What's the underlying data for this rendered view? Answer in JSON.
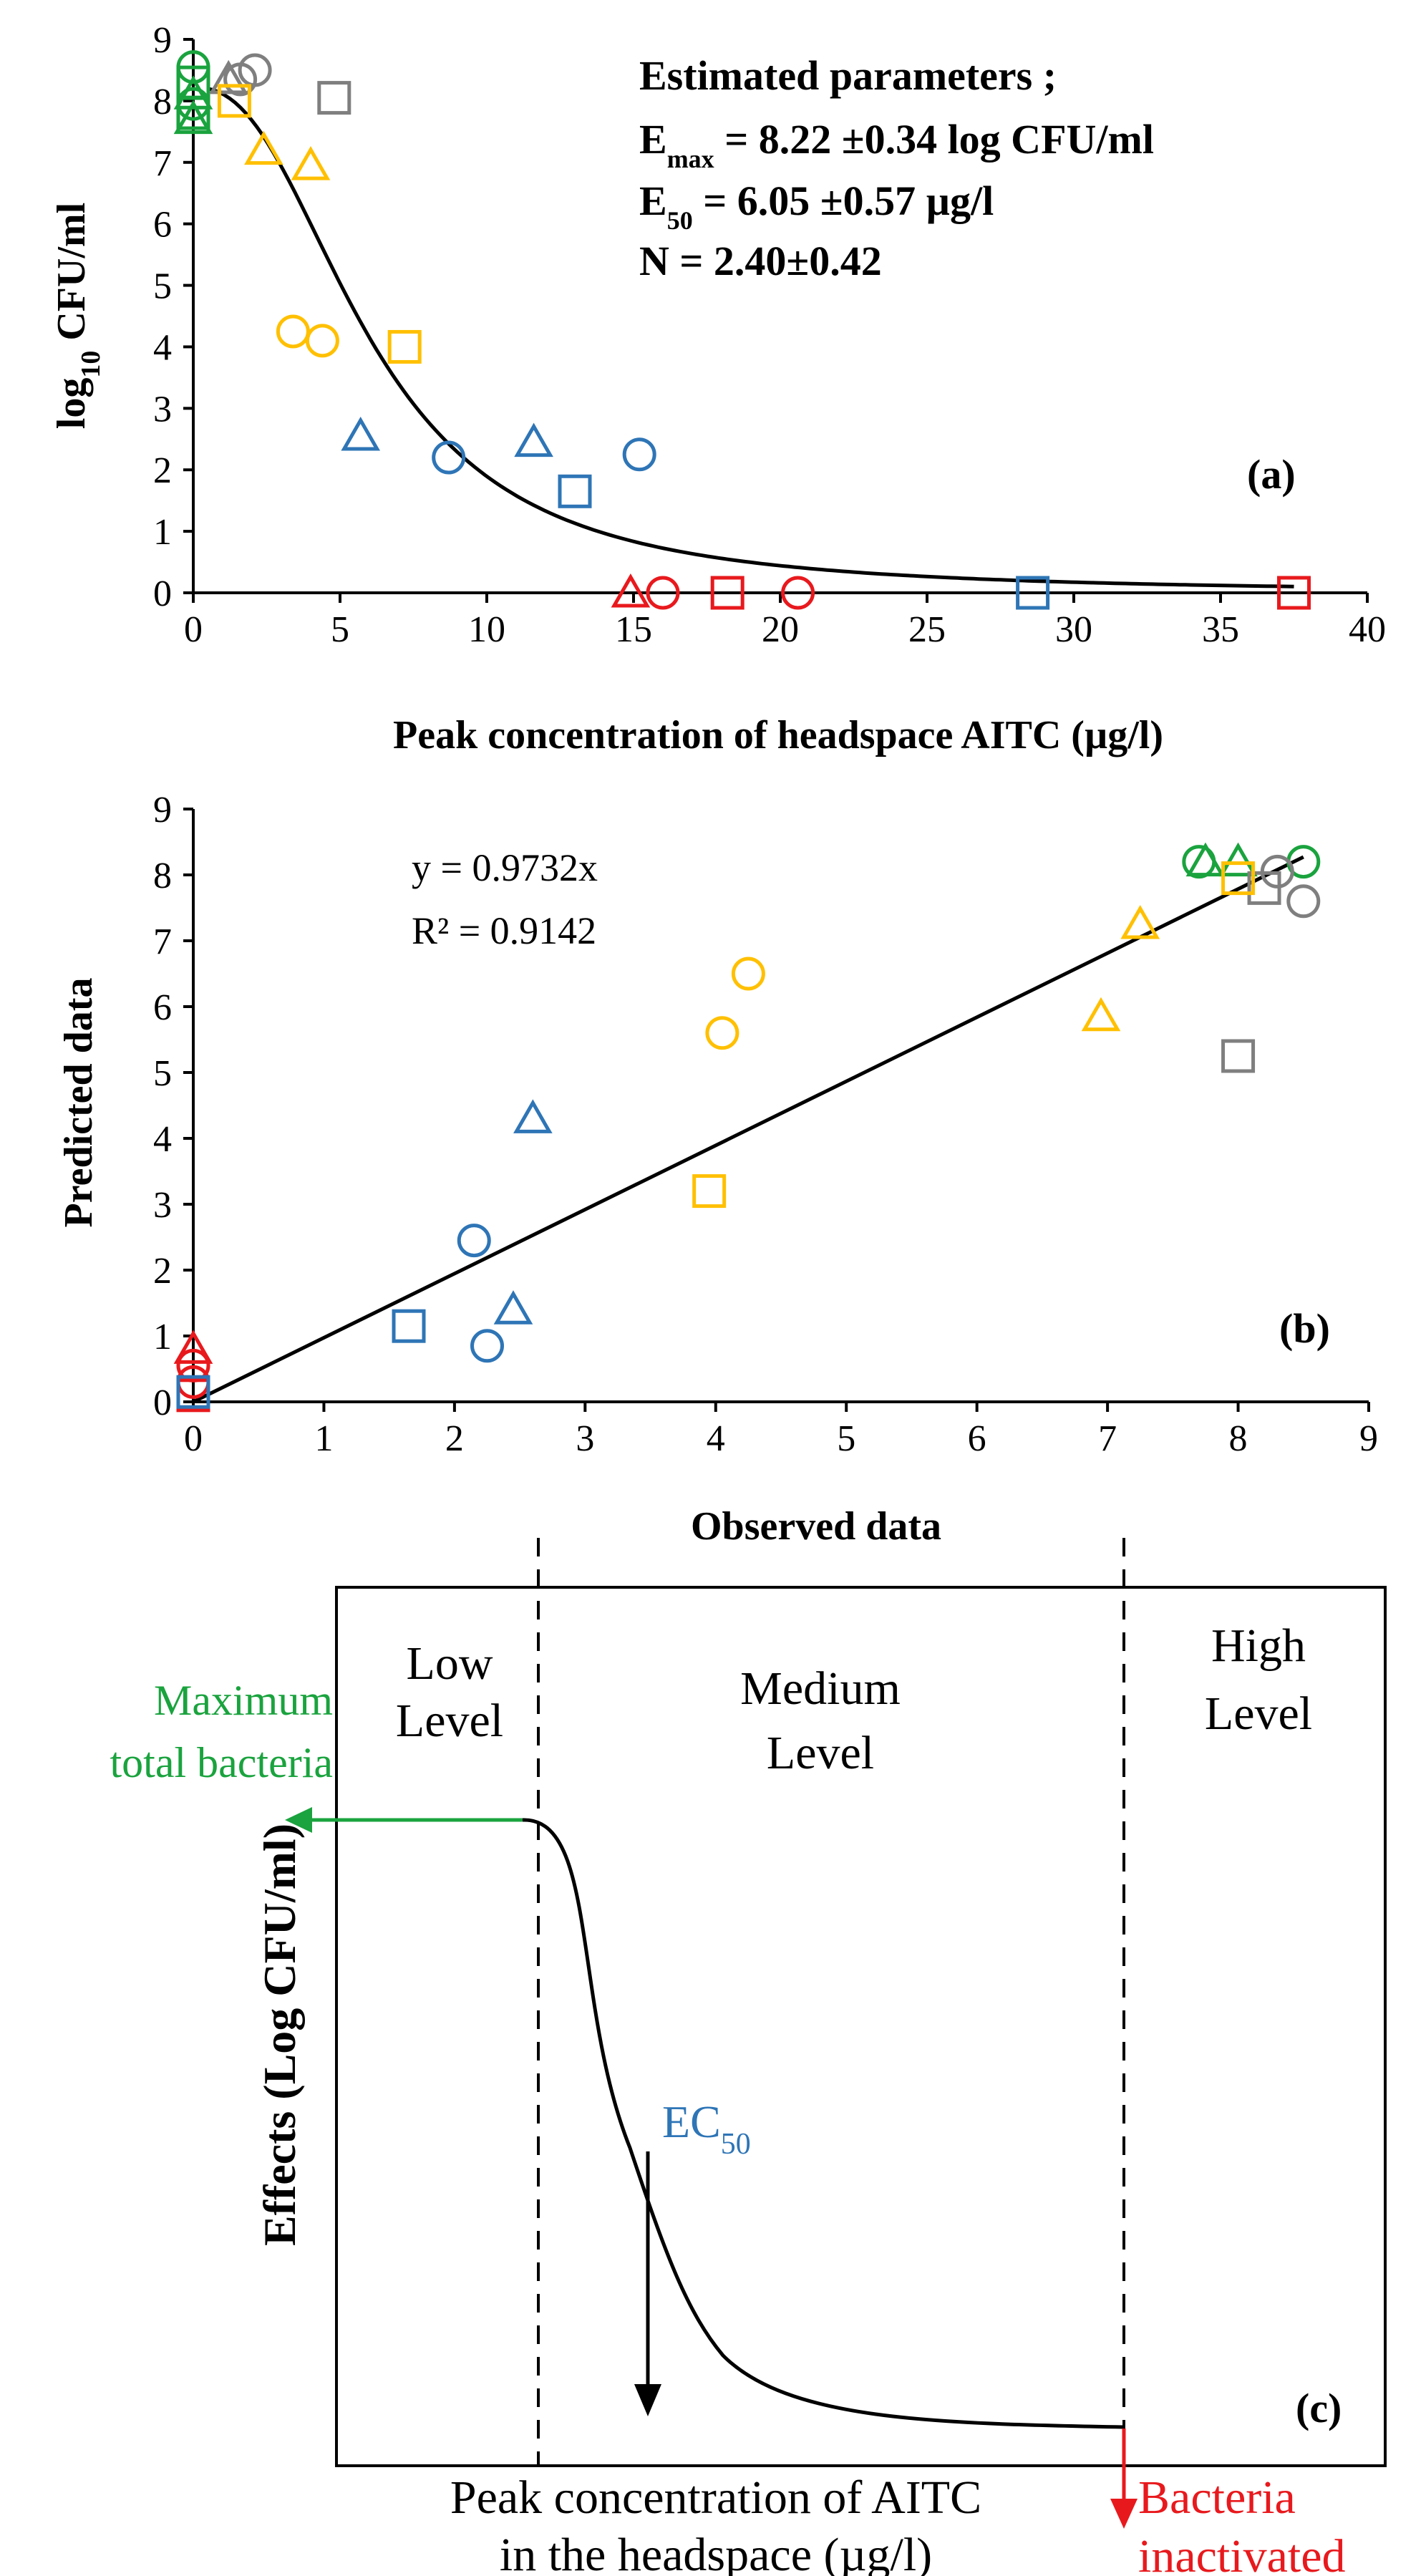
{
  "colors": {
    "green": "#1AA33E",
    "gray": "#7F7F7F",
    "yellow": "#FFC000",
    "blue": "#2E75B6",
    "red": "#E8191D",
    "black": "#000000"
  },
  "chart_data": [
    {
      "type": "scatter",
      "panel_label": "(a)",
      "xlabel": "Peak concentration of headspace AITC (µg/l)",
      "ylabel": "log10 CFU/ml",
      "ylabel_main": "log",
      "ylabel_sub": "10",
      "ylabel_rest": " CFU/ml",
      "xlim": [
        0,
        40
      ],
      "ylim": [
        0,
        9
      ],
      "xticks": [
        0,
        5,
        10,
        15,
        20,
        25,
        30,
        35,
        40
      ],
      "yticks": [
        0,
        1,
        2,
        3,
        4,
        5,
        6,
        7,
        8,
        9
      ],
      "params_title": "Estimated parameters ;",
      "param_lines": [
        {
          "main": "E",
          "sub": "max",
          "rest": " = 8.22 ±0.34 log CFU/ml"
        },
        {
          "main": "E",
          "sub": "50",
          "rest": " = 6.05 ±0.57 µg/l"
        },
        {
          "main": "N = 2.40±0.42",
          "sub": "",
          "rest": ""
        }
      ],
      "fit": {
        "model": "Emax",
        "emax": 8.22,
        "e50": 6.05,
        "n": 2.4
      },
      "points": [
        {
          "x": 0,
          "y": 8.55,
          "marker": "circle",
          "color": "green"
        },
        {
          "x": 0,
          "y": 8.3,
          "marker": "square",
          "color": "green"
        },
        {
          "x": 0,
          "y": 8.1,
          "marker": "triangle",
          "color": "green"
        },
        {
          "x": 0,
          "y": 7.95,
          "marker": "circle",
          "color": "green"
        },
        {
          "x": 0,
          "y": 7.8,
          "marker": "square",
          "color": "green"
        },
        {
          "x": 0,
          "y": 7.7,
          "marker": "triangle",
          "color": "green"
        },
        {
          "x": 1.2,
          "y": 8.35,
          "marker": "triangle",
          "color": "gray"
        },
        {
          "x": 1.6,
          "y": 8.35,
          "marker": "circle",
          "color": "gray"
        },
        {
          "x": 2.1,
          "y": 8.5,
          "marker": "circle",
          "color": "gray"
        },
        {
          "x": 4.8,
          "y": 8.05,
          "marker": "square",
          "color": "gray"
        },
        {
          "x": 1.4,
          "y": 8.0,
          "marker": "square",
          "color": "yellow"
        },
        {
          "x": 2.4,
          "y": 7.2,
          "marker": "triangle",
          "color": "yellow"
        },
        {
          "x": 4.0,
          "y": 6.95,
          "marker": "triangle",
          "color": "yellow"
        },
        {
          "x": 3.4,
          "y": 4.25,
          "marker": "circle",
          "color": "yellow"
        },
        {
          "x": 4.4,
          "y": 4.1,
          "marker": "circle",
          "color": "yellow"
        },
        {
          "x": 7.2,
          "y": 4.0,
          "marker": "square",
          "color": "yellow"
        },
        {
          "x": 5.7,
          "y": 2.55,
          "marker": "triangle",
          "color": "blue"
        },
        {
          "x": 8.7,
          "y": 2.2,
          "marker": "circle",
          "color": "blue"
        },
        {
          "x": 11.6,
          "y": 2.45,
          "marker": "triangle",
          "color": "blue"
        },
        {
          "x": 13.0,
          "y": 1.65,
          "marker": "square",
          "color": "blue"
        },
        {
          "x": 15.2,
          "y": 2.25,
          "marker": "circle",
          "color": "blue"
        },
        {
          "x": 28.6,
          "y": 0.0,
          "marker": "square",
          "color": "blue"
        },
        {
          "x": 14.9,
          "y": 0.0,
          "marker": "triangle",
          "color": "red"
        },
        {
          "x": 16.0,
          "y": 0.0,
          "marker": "circle",
          "color": "red"
        },
        {
          "x": 18.2,
          "y": 0.0,
          "marker": "square",
          "color": "red"
        },
        {
          "x": 20.6,
          "y": 0.0,
          "marker": "circle",
          "color": "red"
        },
        {
          "x": 37.5,
          "y": 0.0,
          "marker": "square",
          "color": "red"
        }
      ]
    },
    {
      "type": "scatter",
      "panel_label": "(b)",
      "xlabel": "Observed data",
      "ylabel": "Predicted data",
      "xlim": [
        0,
        9
      ],
      "ylim": [
        0,
        9
      ],
      "xticks": [
        0,
        1,
        2,
        3,
        4,
        5,
        6,
        7,
        8,
        9
      ],
      "yticks": [
        0,
        1,
        2,
        3,
        4,
        5,
        6,
        7,
        8,
        9
      ],
      "equation": "y = 0.9732x",
      "r_squared": "R² = 0.9142",
      "trendline": {
        "slope": 0.9732,
        "x_range": [
          0,
          8.5
        ]
      },
      "points": [
        {
          "x": 7.7,
          "y": 8.2,
          "marker": "circle",
          "color": "green"
        },
        {
          "x": 7.75,
          "y": 8.2,
          "marker": "triangle",
          "color": "green"
        },
        {
          "x": 8.0,
          "y": 8.2,
          "marker": "triangle",
          "color": "green"
        },
        {
          "x": 8.5,
          "y": 8.2,
          "marker": "circle",
          "color": "green"
        },
        {
          "x": 8.3,
          "y": 8.05,
          "marker": "circle",
          "color": "gray"
        },
        {
          "x": 8.2,
          "y": 7.8,
          "marker": "square",
          "color": "gray"
        },
        {
          "x": 8.5,
          "y": 7.6,
          "marker": "circle",
          "color": "gray"
        },
        {
          "x": 8.0,
          "y": 5.25,
          "marker": "square",
          "color": "gray"
        },
        {
          "x": 8.0,
          "y": 7.95,
          "marker": "square",
          "color": "yellow"
        },
        {
          "x": 7.25,
          "y": 7.25,
          "marker": "triangle",
          "color": "yellow"
        },
        {
          "x": 6.95,
          "y": 5.85,
          "marker": "triangle",
          "color": "yellow"
        },
        {
          "x": 4.25,
          "y": 6.5,
          "marker": "circle",
          "color": "yellow"
        },
        {
          "x": 4.05,
          "y": 5.6,
          "marker": "circle",
          "color": "yellow"
        },
        {
          "x": 3.95,
          "y": 3.2,
          "marker": "square",
          "color": "yellow"
        },
        {
          "x": 2.6,
          "y": 4.3,
          "marker": "triangle",
          "color": "blue"
        },
        {
          "x": 2.15,
          "y": 2.45,
          "marker": "circle",
          "color": "blue"
        },
        {
          "x": 2.45,
          "y": 1.4,
          "marker": "triangle",
          "color": "blue"
        },
        {
          "x": 1.65,
          "y": 1.15,
          "marker": "square",
          "color": "blue"
        },
        {
          "x": 2.25,
          "y": 0.85,
          "marker": "circle",
          "color": "blue"
        },
        {
          "x": 0,
          "y": 0.8,
          "marker": "triangle",
          "color": "red"
        },
        {
          "x": 0,
          "y": 0.55,
          "marker": "circle",
          "color": "red"
        },
        {
          "x": 0,
          "y": 0.3,
          "marker": "circle",
          "color": "red"
        },
        {
          "x": 0,
          "y": 0.1,
          "marker": "square",
          "color": "red"
        },
        {
          "x": 0,
          "y": 0.15,
          "marker": "square",
          "color": "blue"
        }
      ]
    },
    {
      "type": "diagram",
      "panel_label": "(c)",
      "regions": [
        {
          "line1": "Low",
          "line2": "Level"
        },
        {
          "line1": "Medium",
          "line2": "Level"
        },
        {
          "line1": "High",
          "line2": "Level"
        }
      ],
      "max_line1": "Maximum",
      "max_line2": "total bacteria",
      "ylabel": "Effects (Log CFU/ml)",
      "ec50_main": "EC",
      "ec50_sub": "50",
      "xlabel_line1": "Peak concentration of AITC",
      "xlabel_line2": "in the headspace (µg/l)",
      "inactivated_line1": "Bacteria",
      "inactivated_line2": "inactivated"
    }
  ]
}
